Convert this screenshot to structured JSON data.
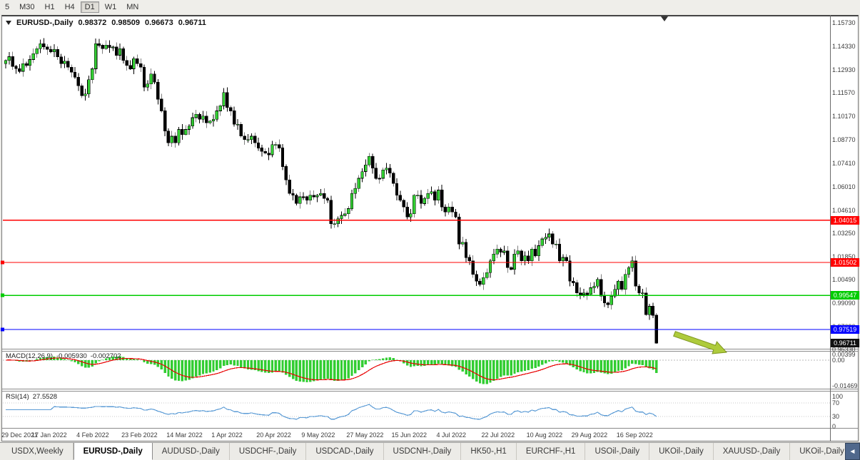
{
  "colors": {
    "bull": "#32CD32",
    "bear": "#000000",
    "wick": "#000000",
    "macd_hist": "#32CD32",
    "macd_signal": "#E80000",
    "rsi_line": "#5B9BD5",
    "current_bg": "#111111",
    "arrow_fill": "#AECB3C",
    "arrow_stroke": "#7E9620"
  },
  "toolbar": {
    "timeframes": [
      {
        "label": "5",
        "active": false
      },
      {
        "label": "M30",
        "active": false
      },
      {
        "label": "H1",
        "active": false
      },
      {
        "label": "H4",
        "active": false
      },
      {
        "label": "D1",
        "active": true
      },
      {
        "label": "W1",
        "active": false
      },
      {
        "label": "MN",
        "active": false
      }
    ]
  },
  "chart_header": {
    "symbol": "EURUSD-,Daily",
    "open": "0.98372",
    "high": "0.98509",
    "low": "0.96673",
    "close": "0.96711"
  },
  "price_axis": {
    "ticks": [
      "1.15730",
      "1.14330",
      "1.12930",
      "1.11570",
      "1.10170",
      "1.08770",
      "1.07410",
      "1.06010",
      "1.04610",
      "1.03250",
      "1.01850",
      "1.00490",
      "0.99090",
      "0.97690",
      "0.96330"
    ],
    "levels": [
      {
        "label": "1.04015",
        "price": 1.04015,
        "color": "#FF0000",
        "anchor": false
      },
      {
        "label": "1.01502",
        "price": 1.01502,
        "color": "#FF0000",
        "anchor": true
      },
      {
        "label": "0.99547",
        "price": 0.99547,
        "color": "#00CC00",
        "anchor": true
      },
      {
        "label": "0.97519",
        "price": 0.97519,
        "color": "#0000FF",
        "anchor": true
      }
    ],
    "current": {
      "label": "0.96711",
      "price": 0.96711
    }
  },
  "macd_panel": {
    "name": "MACD(12,26,9)",
    "value_main": "-0.005930",
    "value_signal": "-0.002702",
    "axis": [
      "0.00399",
      "0.00",
      "-0.01469"
    ]
  },
  "rsi_panel": {
    "name": "RSI(14)",
    "value": "27.5528",
    "axis": [
      "100",
      "70",
      "30",
      "0"
    ],
    "levels": [
      70,
      30
    ]
  },
  "date_axis": {
    "labels": [
      "29 Dec 2021",
      "17 Jan 2022",
      "4 Feb 2022",
      "23 Feb 2022",
      "14 Mar 2022",
      "1 Apr 2022",
      "20 Apr 2022",
      "9 May 2022",
      "27 May 2022",
      "15 Jun 2022",
      "4 Jul 2022",
      "22 Jul 2022",
      "10 Aug 2022",
      "29 Aug 2022",
      "16 Sep 2022"
    ],
    "label_step": 13
  },
  "tabs": {
    "items": [
      {
        "label": "USDX,Weekly",
        "active": false
      },
      {
        "label": "EURUSD-,Daily",
        "active": true
      },
      {
        "label": "AUDUSD-,Daily",
        "active": false
      },
      {
        "label": "USDCHF-,Daily",
        "active": false
      },
      {
        "label": "USDCAD-,Daily",
        "active": false
      },
      {
        "label": "USDCNH-,Daily",
        "active": false
      },
      {
        "label": "HK50-,H1",
        "active": false
      },
      {
        "label": "EURCHF-,H1",
        "active": false
      },
      {
        "label": "USOil-,Daily",
        "active": false
      },
      {
        "label": "UKOil-,Daily",
        "active": false
      },
      {
        "label": "XAUUSD-,Daily",
        "active": false
      },
      {
        "label": "UKOil-,Daily",
        "active": false
      }
    ],
    "scroll_left": "◄"
  },
  "chart_data": {
    "type": "candlestick",
    "symbol": "EURUSD-",
    "timeframe": "Daily",
    "ylim": [
      0.9612,
      1.1616
    ],
    "first_open": 1.133,
    "closes": [
      1.135,
      1.1372,
      1.1315,
      1.13,
      1.1285,
      1.133,
      1.132,
      1.1355,
      1.139,
      1.142,
      1.145,
      1.143,
      1.1415,
      1.14,
      1.1415,
      1.137,
      1.133,
      1.1345,
      1.131,
      1.128,
      1.125,
      1.12,
      1.114,
      1.115,
      1.1235,
      1.13,
      1.145,
      1.144,
      1.142,
      1.144,
      1.1425,
      1.143,
      1.138,
      1.142,
      1.135,
      1.132,
      1.13,
      1.136,
      1.133,
      1.131,
      1.119,
      1.121,
      1.127,
      1.122,
      1.112,
      1.105,
      1.093,
      1.086,
      1.09,
      1.086,
      1.094,
      1.091,
      1.094,
      1.096,
      1.101,
      1.103,
      1.1,
      1.102,
      1.098,
      1.099,
      1.1,
      1.105,
      1.108,
      1.116,
      1.107,
      1.105,
      1.097,
      1.097,
      1.09,
      1.088,
      1.088,
      1.09,
      1.086,
      1.083,
      1.081,
      1.08,
      1.079,
      1.085,
      1.085,
      1.083,
      1.072,
      1.064,
      1.056,
      1.055,
      1.05,
      1.054,
      1.054,
      1.052,
      1.055,
      1.054,
      1.055,
      1.056,
      1.053,
      1.052,
      1.038,
      1.038,
      1.041,
      1.043,
      1.044,
      1.047,
      1.056,
      1.059,
      1.065,
      1.069,
      1.073,
      1.078,
      1.071,
      1.065,
      1.065,
      1.07,
      1.071,
      1.068,
      1.062,
      1.055,
      1.052,
      1.048,
      1.042,
      1.044,
      1.055,
      1.055,
      1.05,
      1.053,
      1.056,
      1.057,
      1.052,
      1.058,
      1.048,
      1.045,
      1.048,
      1.045,
      1.042,
      1.026,
      1.027,
      1.018,
      1.016,
      1.008,
      1.004,
      1.002,
      1.006,
      1.009,
      1.016,
      1.02,
      1.023,
      1.021,
      1.022,
      1.012,
      1.011,
      1.02,
      1.022,
      1.016,
      1.019,
      1.016,
      1.023,
      1.019,
      1.025,
      1.029,
      1.03,
      1.032,
      1.026,
      1.026,
      1.016,
      1.018,
      1.016,
      1.004,
      1.003,
      0.997,
      0.996,
      0.997,
      0.996,
      1.0,
      1.001,
      1.005,
      0.995,
      0.991,
      0.99,
      0.995,
      0.999,
      1.004,
      0.999,
      1.008,
      1.012,
      1.016,
      1.001,
      0.997,
      0.997,
      0.984,
      0.989,
      0.98372,
      0.96711
    ],
    "ohlc_last": {
      "open": 0.98372,
      "high": 0.98509,
      "low": 0.96673,
      "close": 0.96711
    },
    "horizontal_levels": [
      1.04015,
      1.01502,
      0.99547,
      0.97519
    ],
    "indicators": [
      {
        "type": "MACD",
        "fast": 12,
        "slow": 26,
        "signal": 9,
        "last_main": -0.00593,
        "last_signal": -0.002702,
        "axis_range": [
          -0.01469,
          0.00399
        ]
      },
      {
        "type": "RSI",
        "period": 14,
        "last": 27.5528,
        "guide_levels": [
          70,
          30
        ],
        "axis_range": [
          0,
          100
        ]
      }
    ]
  }
}
